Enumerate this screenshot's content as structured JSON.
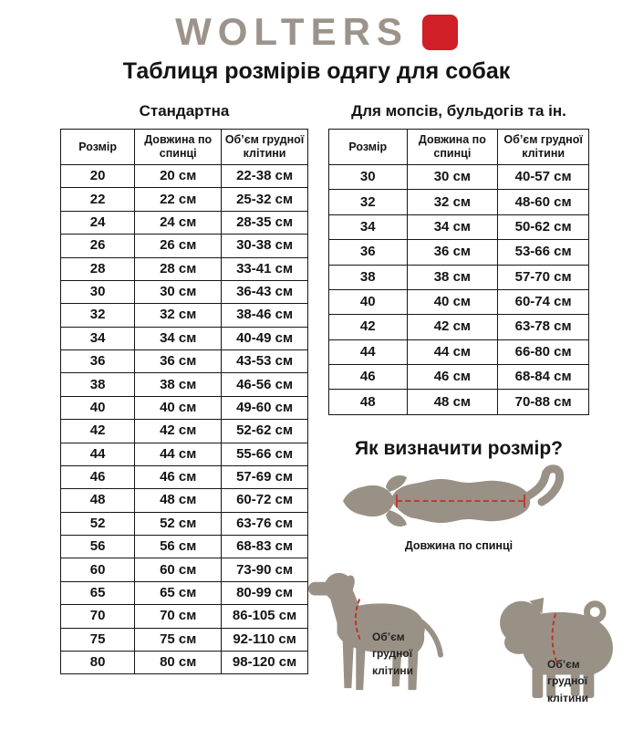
{
  "logo": {
    "text": "WOLTERS"
  },
  "title": "Таблиця розмірів одягу для собак",
  "tables": [
    {
      "subtitle": "Стандартна",
      "headers": [
        "Розмір",
        "Довжина по спинці",
        "Об’єм грудної клітини"
      ],
      "bold_size": "52",
      "rows": [
        [
          "20",
          "20 см",
          "22-38 см"
        ],
        [
          "22",
          "22 см",
          "25-32 см"
        ],
        [
          "24",
          "24 см",
          "28-35 см"
        ],
        [
          "26",
          "26 см",
          "30-38 см"
        ],
        [
          "28",
          "28 см",
          "33-41 см"
        ],
        [
          "30",
          "30 см",
          "36-43 см"
        ],
        [
          "32",
          "32 см",
          "38-46 см"
        ],
        [
          "34",
          "34 см",
          "40-49 см"
        ],
        [
          "36",
          "36 см",
          "43-53 см"
        ],
        [
          "38",
          "38 см",
          "46-56 см"
        ],
        [
          "40",
          "40 см",
          "49-60 см"
        ],
        [
          "42",
          "42 см",
          "52-62 см"
        ],
        [
          "44",
          "44 см",
          "55-66 см"
        ],
        [
          "46",
          "46 см",
          "57-69 см"
        ],
        [
          "48",
          "48 см",
          "60-72 см"
        ],
        [
          "52",
          "52 см",
          "63-76 см"
        ],
        [
          "56",
          "56 см",
          "68-83 см"
        ],
        [
          "60",
          "60 см",
          "73-90 см"
        ],
        [
          "65",
          "65 см",
          "80-99 см"
        ],
        [
          "70",
          "70 см",
          "86-105 см"
        ],
        [
          "75",
          "75 см",
          "92-110 см"
        ],
        [
          "80",
          "80 см",
          "98-120 см"
        ]
      ]
    },
    {
      "subtitle": "Для мопсів, бульдогів та ін.",
      "headers": [
        "Розмір",
        "Довжина по спинці",
        "Об’єм грудної клітини"
      ],
      "rows": [
        [
          "30",
          "30 см",
          "40-57 см"
        ],
        [
          "32",
          "32 см",
          "48-60 см"
        ],
        [
          "34",
          "34 см",
          "50-62 см"
        ],
        [
          "36",
          "36 см",
          "53-66 см"
        ],
        [
          "38",
          "38 см",
          "57-70 см"
        ],
        [
          "40",
          "40 см",
          "60-74 см"
        ],
        [
          "42",
          "42 см",
          "63-78 см"
        ],
        [
          "44",
          "44 см",
          "66-80 см"
        ],
        [
          "46",
          "46 см",
          "68-84 см"
        ],
        [
          "48",
          "48 см",
          "70-88 см"
        ]
      ]
    }
  ],
  "how_to": {
    "title": "Як визначити розмір?",
    "back_length_label": "Довжина по спинці",
    "chest_label_lines": [
      "Об’єм",
      "грудної",
      "клітини"
    ]
  },
  "colors": {
    "accent_red": "#d01f26",
    "logo_gray": "#9c938b",
    "dog_silhouette": "#9a9186",
    "dash_red": "#c5302b"
  }
}
